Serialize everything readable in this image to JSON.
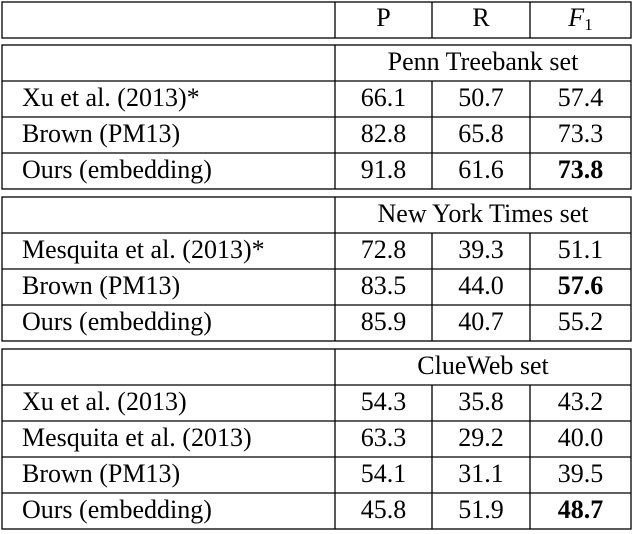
{
  "header": {
    "columns": [
      "P",
      "R"
    ],
    "f1": {
      "letter": "F",
      "subscript": "1"
    }
  },
  "sections": [
    {
      "title": "Penn Treebank set",
      "rows": [
        {
          "label": "Xu et al. (2013)*",
          "values": [
            "66.1",
            "50.7",
            "57.4"
          ],
          "bold_f1": false
        },
        {
          "label": "Brown (PM13)",
          "values": [
            "82.8",
            "65.8",
            "73.3"
          ],
          "bold_f1": false
        },
        {
          "label": "Ours (embedding)",
          "values": [
            "91.8",
            "61.6",
            "73.8"
          ],
          "bold_f1": true
        }
      ]
    },
    {
      "title": "New York Times set",
      "rows": [
        {
          "label": "Mesquita et al. (2013)*",
          "values": [
            "72.8",
            "39.3",
            "51.1"
          ],
          "bold_f1": false
        },
        {
          "label": "Brown (PM13)",
          "values": [
            "83.5",
            "44.0",
            "57.6"
          ],
          "bold_f1": true
        },
        {
          "label": "Ours (embedding)",
          "values": [
            "85.9",
            "40.7",
            "55.2"
          ],
          "bold_f1": false
        }
      ]
    },
    {
      "title": "ClueWeb set",
      "rows": [
        {
          "label": "Xu et al. (2013)",
          "values": [
            "54.3",
            "35.8",
            "43.2"
          ],
          "bold_f1": false
        },
        {
          "label": "Mesquita et al. (2013)",
          "values": [
            "63.3",
            "29.2",
            "40.0"
          ],
          "bold_f1": false
        },
        {
          "label": "Brown (PM13)",
          "values": [
            "54.1",
            "31.1",
            "39.5"
          ],
          "bold_f1": false
        },
        {
          "label": "Ours (embedding)",
          "values": [
            "45.8",
            "51.9",
            "48.7"
          ],
          "bold_f1": true
        }
      ]
    }
  ]
}
